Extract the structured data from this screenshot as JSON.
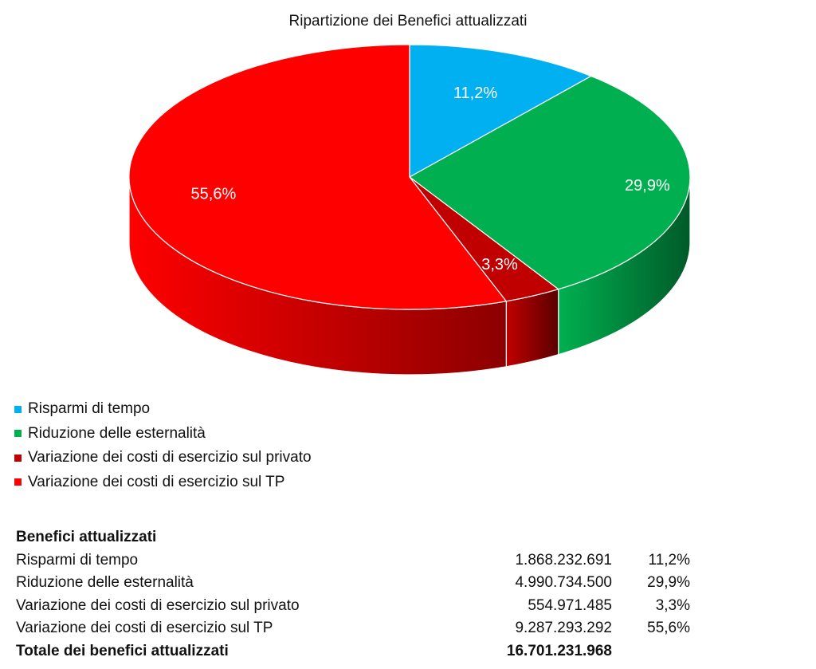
{
  "chart_data": {
    "type": "pie",
    "title": "Ripartizione dei Benefici attualizzati",
    "style": "3d",
    "legend_placement": "bottom-left",
    "slices": [
      {
        "label": "Risparmi di tempo",
        "value": 11.2,
        "display": "11,2%",
        "color": "#00b0f0",
        "side_color": "#007aa8"
      },
      {
        "label": "Riduzione delle esternalità",
        "value": 29.9,
        "display": "29,9%",
        "color": "#00b050",
        "side_color": "#005a28"
      },
      {
        "label": "Variazione dei costi di esercizio sul privato",
        "value": 3.3,
        "display": "3,3%",
        "color": "#c00000",
        "side_color": "#5a0000"
      },
      {
        "label": "Variazione dei costi di esercizio sul TP",
        "value": 55.6,
        "display": "55,6%",
        "color": "#ff0000",
        "side_color": "#8c0000"
      }
    ]
  },
  "table": {
    "header": "Benefici attualizzati",
    "rows": [
      {
        "label": "Risparmi di tempo",
        "value": "1.868.232.691",
        "pct": "11,2%"
      },
      {
        "label": "Riduzione delle esternalità",
        "value": "4.990.734.500",
        "pct": "29,9%"
      },
      {
        "label": "Variazione dei costi di esercizio sul privato",
        "value": "554.971.485",
        "pct": "3,3%"
      },
      {
        "label": "Variazione dei costi di esercizio sul TP",
        "value": "9.287.293.292",
        "pct": "55,6%"
      }
    ],
    "total": {
      "label": "Totale dei benefici attualizzati",
      "value": "16.701.231.968"
    }
  }
}
